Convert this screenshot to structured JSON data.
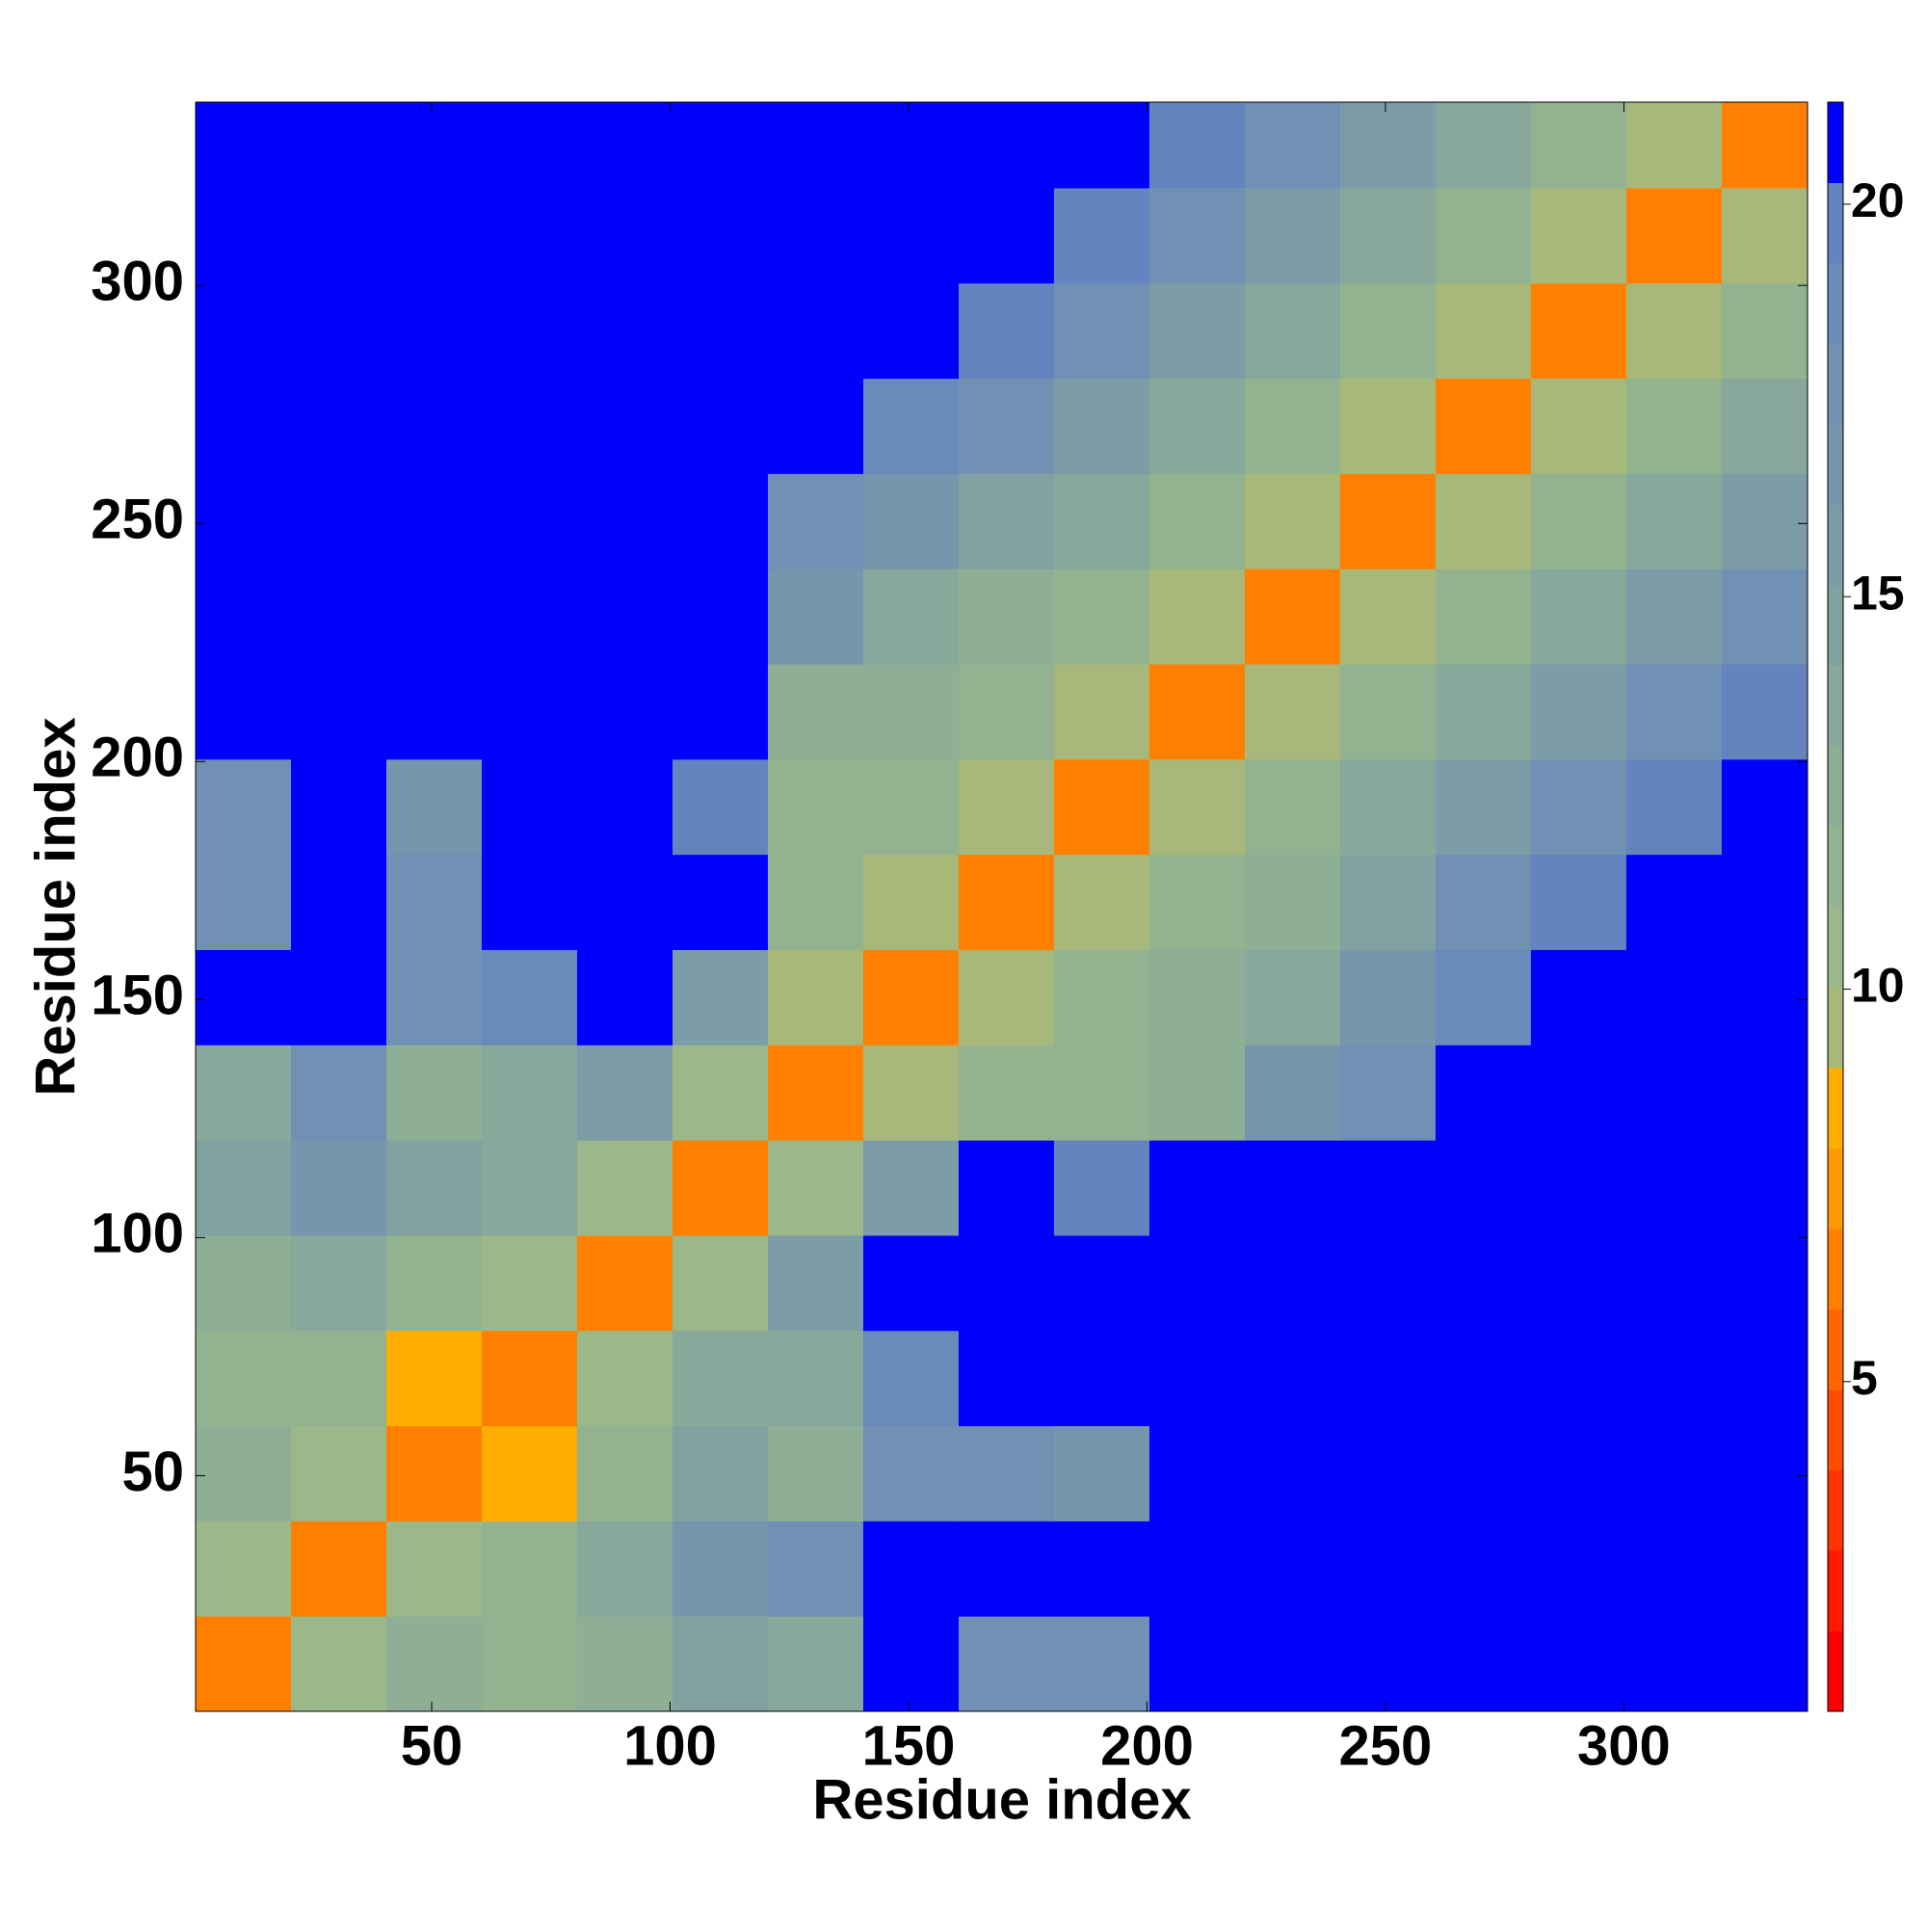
{
  "chart_data": {
    "type": "heatmap",
    "x_label": "Residue index",
    "y_label": "Residue index",
    "xlim": [
      0.5,
      338.5
    ],
    "ylim": [
      0.5,
      338.5
    ],
    "xticks": [
      50,
      100,
      150,
      200,
      250,
      300
    ],
    "yticks": [
      50,
      100,
      150,
      200,
      250,
      300
    ],
    "x_bins": [
      0.5,
      20.5,
      40.5,
      60.5,
      80.5,
      100.5,
      120.5,
      140.5,
      160.5,
      180.5,
      200.5,
      220.5,
      240.5,
      260.5,
      280.5,
      300.5,
      320.5,
      338.5
    ],
    "y_bins": [
      0.5,
      20.5,
      40.5,
      60.5,
      80.5,
      100.5,
      120.5,
      140.5,
      160.5,
      180.5,
      200.5,
      220.5,
      240.5,
      260.5,
      280.5,
      300.5,
      320.5,
      338.5
    ],
    "z": [
      [
        6,
        11,
        13,
        12,
        13,
        15,
        14,
        21,
        18,
        18,
        21,
        21,
        21,
        21,
        21,
        21,
        21
      ],
      [
        11,
        6,
        11,
        12,
        14,
        17,
        18,
        21,
        21,
        21,
        21,
        21,
        21,
        21,
        21,
        21,
        21
      ],
      [
        13,
        11,
        6,
        8,
        12,
        15,
        13,
        18,
        18,
        17,
        21,
        21,
        21,
        21,
        21,
        21,
        21
      ],
      [
        12,
        12,
        8,
        6,
        11,
        14,
        14,
        19,
        21,
        21,
        21,
        21,
        21,
        21,
        21,
        21,
        21
      ],
      [
        13,
        14,
        12,
        11,
        6,
        11,
        16,
        21,
        21,
        21,
        21,
        21,
        21,
        21,
        21,
        21,
        21
      ],
      [
        15,
        17,
        15,
        14,
        11,
        6,
        11,
        16,
        21,
        20,
        21,
        21,
        21,
        21,
        21,
        21,
        21
      ],
      [
        14,
        18,
        13,
        14,
        16,
        11,
        6,
        10,
        12,
        12,
        13,
        17,
        18,
        21,
        21,
        21,
        21
      ],
      [
        21,
        21,
        18,
        19,
        21,
        16,
        10,
        6,
        10,
        12,
        13,
        14,
        17,
        19,
        21,
        21,
        21
      ],
      [
        18,
        21,
        18,
        21,
        21,
        21,
        12,
        10,
        6,
        10,
        12,
        13,
        15,
        18,
        20,
        21,
        21
      ],
      [
        18,
        21,
        17,
        21,
        21,
        20,
        12,
        12,
        10,
        6,
        10,
        12,
        14,
        16,
        18,
        20,
        21
      ],
      [
        21,
        21,
        21,
        21,
        21,
        21,
        13,
        13,
        12,
        10,
        6,
        10,
        12,
        14,
        16,
        18,
        20
      ],
      [
        21,
        21,
        21,
        21,
        21,
        21,
        17,
        14,
        13,
        12,
        10,
        6,
        10,
        12,
        14,
        16,
        18
      ],
      [
        21,
        21,
        21,
        21,
        21,
        21,
        18,
        17,
        15,
        14,
        12,
        10,
        6,
        10,
        12,
        14,
        16
      ],
      [
        21,
        21,
        21,
        21,
        21,
        21,
        21,
        19,
        18,
        16,
        14,
        12,
        10,
        6,
        10,
        12,
        14
      ],
      [
        21,
        21,
        21,
        21,
        21,
        21,
        21,
        21,
        20,
        18,
        16,
        14,
        12,
        10,
        6,
        10,
        12
      ],
      [
        21,
        21,
        21,
        21,
        21,
        21,
        21,
        21,
        21,
        20,
        18,
        16,
        14,
        12,
        10,
        6,
        10
      ],
      [
        21,
        21,
        21,
        21,
        21,
        21,
        21,
        21,
        21,
        21,
        20,
        18,
        16,
        14,
        12,
        10,
        6
      ]
    ],
    "clim": [
      0.8,
      21.3
    ],
    "cticks": [
      5,
      10,
      15,
      20
    ],
    "colors": [
      "#ff0000",
      "#ff1a00",
      "#ff3300",
      "#ff4d00",
      "#ff6600",
      "#ff8000",
      "#ff9900",
      "#ffad00",
      "#a8b87a",
      "#9ab88a",
      "#93b390",
      "#8eae96",
      "#88a89c",
      "#82a2a2",
      "#7c9ca8",
      "#7696ae",
      "#7090b4",
      "#6a8aba",
      "#6484c0",
      "#0000ff"
    ]
  }
}
